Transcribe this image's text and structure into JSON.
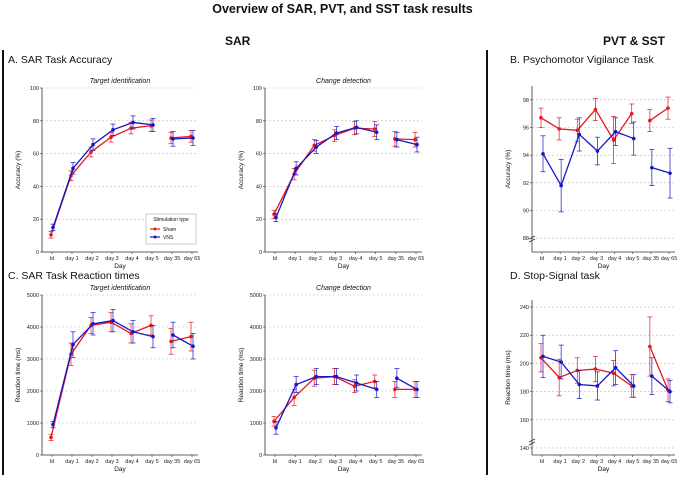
{
  "header": {
    "main_title": "Overview of SAR, PVT, and SST task results",
    "sar_title": "SAR",
    "pvt_sst_title": "PVT & SST",
    "panel_a": "A. SAR Task Accuracy",
    "panel_b": "B. Psychomotor Vigilance Task",
    "panel_c": "C. SAR Task Reaction times",
    "panel_d": "D. Stop-Signal task"
  },
  "colors": {
    "sham": "#e8171e",
    "vns": "#1616c8",
    "grid": "#bdbdbd"
  },
  "chart_data": [
    {
      "id": "a1",
      "type": "line",
      "title": "Target identification",
      "xlabel": "Day",
      "ylabel": "Accuracy (%)",
      "categories": [
        "bl",
        "day 1",
        "day 2",
        "day 3",
        "day 4",
        "day 5",
        "day 35",
        "day 65"
      ],
      "ylim": [
        0,
        100
      ],
      "yticks": [
        0,
        20,
        40,
        60,
        80,
        100
      ],
      "legend": {
        "title": "Stimulation type",
        "position": "lower-right"
      },
      "series": [
        {
          "name": "Sham",
          "values": [
            10.5,
            46.5,
            61,
            70,
            75.5,
            77,
            69.5,
            70.5
          ],
          "err": [
            2,
            3,
            3,
            3,
            3.5,
            3.5,
            3.5,
            3.5
          ]
        },
        {
          "name": "VNS",
          "values": [
            15,
            51,
            65.5,
            74.5,
            79,
            77.5,
            69,
            69.5
          ],
          "err": [
            2,
            3.5,
            3.5,
            3.5,
            4,
            4,
            4.5,
            4.5
          ]
        }
      ]
    },
    {
      "id": "a2",
      "type": "line",
      "title": "Change detection",
      "xlabel": "Day",
      "ylabel": "Accuracy (%)",
      "categories": [
        "bl",
        "day 1",
        "day 2",
        "day 3",
        "day 4",
        "day 5",
        "day 35",
        "day 65"
      ],
      "ylim": [
        0,
        100
      ],
      "yticks": [
        0,
        20,
        40,
        60,
        80,
        100
      ],
      "series": [
        {
          "name": "Sham",
          "values": [
            23,
            47.5,
            65,
            71,
            75.5,
            75,
            69,
            68.5
          ],
          "err": [
            2.5,
            3.5,
            3.5,
            3.5,
            4,
            4.5,
            4.5,
            4.5
          ]
        },
        {
          "name": "VNS",
          "values": [
            21,
            51,
            64,
            72.5,
            76,
            73,
            68.5,
            65.5
          ],
          "err": [
            2.5,
            4,
            4,
            4,
            4,
            4.5,
            4.5,
            4.5
          ]
        }
      ]
    },
    {
      "id": "b",
      "type": "line",
      "xlabel": "Day",
      "ylabel": "Accuracy (%)",
      "categories": [
        "bl",
        "day 1",
        "day 2",
        "day 3",
        "day 4",
        "day 5",
        "day 35",
        "day 65"
      ],
      "ylim": [
        87,
        99
      ],
      "yticks": [
        88,
        90,
        92,
        94,
        96,
        98
      ],
      "axis_break": true,
      "series": [
        {
          "name": "Sham",
          "values": [
            96.7,
            95.9,
            95.8,
            97.3,
            95.1,
            97,
            96.5,
            97.4
          ],
          "err": [
            0.7,
            0.8,
            0.8,
            0.8,
            1.7,
            0.7,
            0.8,
            0.8
          ]
        },
        {
          "name": "VNS",
          "values": [
            94.1,
            91.8,
            95.5,
            94.3,
            95.7,
            95.2,
            93.1,
            92.7
          ],
          "err": [
            1.3,
            1.9,
            1.2,
            1,
            1,
            1.2,
            1.3,
            1.8
          ]
        }
      ]
    },
    {
      "id": "c1",
      "type": "line",
      "title": "Target identification",
      "xlabel": "Day",
      "ylabel": "Reaction time (ms)",
      "categories": [
        "bl",
        "day 1",
        "day 2",
        "day 3",
        "day 4",
        "day 5",
        "day 35",
        "day 65"
      ],
      "ylim": [
        0,
        5000
      ],
      "yticks": [
        0,
        1000,
        2000,
        3000,
        4000,
        5000
      ],
      "series": [
        {
          "name": "Sham",
          "values": [
            550,
            3150,
            4050,
            4150,
            3800,
            4050,
            3550,
            3700
          ],
          "err": [
            100,
            350,
            250,
            300,
            300,
            300,
            400,
            450
          ]
        },
        {
          "name": "VNS",
          "values": [
            950,
            3450,
            4100,
            4200,
            3850,
            3700,
            3750,
            3400
          ],
          "err": [
            100,
            400,
            350,
            350,
            350,
            350,
            400,
            400
          ]
        }
      ]
    },
    {
      "id": "c2",
      "type": "line",
      "title": "Change detection",
      "xlabel": "Day",
      "ylabel": "Reaction time (ms)",
      "categories": [
        "bl",
        "day 1",
        "day 2",
        "day 3",
        "day 4",
        "day 5",
        "day 35",
        "day 65"
      ],
      "ylim": [
        0,
        5000
      ],
      "yticks": [
        0,
        1000,
        2000,
        3000,
        4000,
        5000
      ],
      "series": [
        {
          "name": "Sham",
          "values": [
            1050,
            1800,
            2400,
            2450,
            2150,
            2300,
            2050,
            2050
          ],
          "err": [
            150,
            250,
            250,
            250,
            200,
            200,
            250,
            250
          ]
        },
        {
          "name": "VNS",
          "values": [
            850,
            2200,
            2450,
            2450,
            2250,
            2050,
            2400,
            2050
          ],
          "err": [
            200,
            250,
            250,
            250,
            250,
            250,
            300,
            250
          ]
        }
      ]
    },
    {
      "id": "d",
      "type": "line",
      "xlabel": "Day",
      "ylabel": "Reaction time (ms)",
      "categories": [
        "bl",
        "day 1",
        "day 2",
        "day 3",
        "day 4",
        "day 5",
        "day 35",
        "day 65"
      ],
      "ylim": [
        135,
        245
      ],
      "yticks": [
        140,
        160,
        180,
        200,
        220,
        240
      ],
      "axis_break": true,
      "series": [
        {
          "name": "Sham",
          "values": [
            204,
            190,
            195,
            196,
            193,
            184,
            212,
            181
          ],
          "err": [
            10,
            13,
            9,
            9,
            9,
            8,
            21,
            8
          ]
        },
        {
          "name": "VNS",
          "values": [
            205,
            201,
            185,
            184,
            197,
            184,
            191,
            180
          ],
          "err": [
            15,
            12,
            10,
            10,
            12,
            8,
            13,
            8
          ]
        }
      ]
    }
  ]
}
